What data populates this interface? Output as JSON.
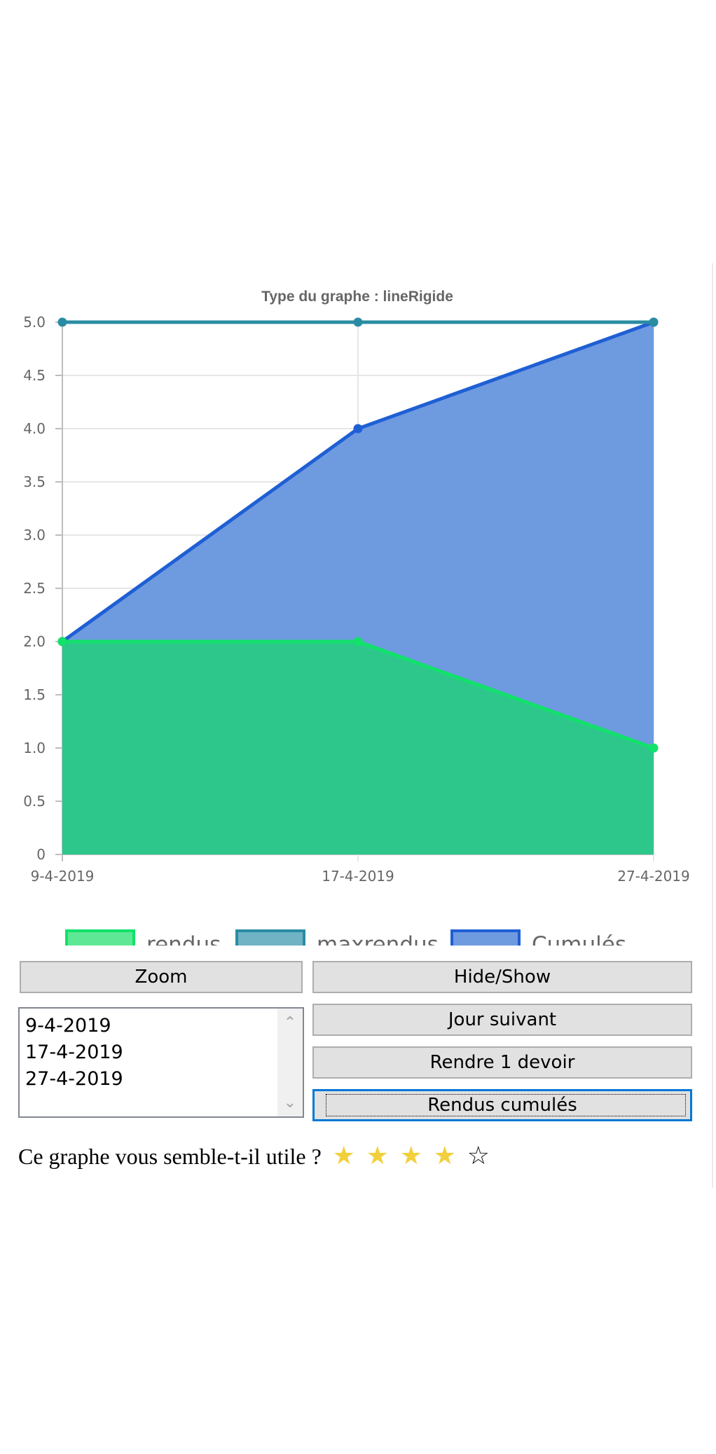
{
  "chart_data": {
    "type": "area",
    "title": "Type du graphe : lineRigide",
    "categories": [
      "9-4-2019",
      "17-4-2019",
      "27-4-2019"
    ],
    "ylim": [
      0,
      5
    ],
    "yticks": [
      "0",
      "0.5",
      "1.0",
      "1.5",
      "2.0",
      "2.5",
      "3.0",
      "3.5",
      "4.0",
      "4.5",
      "5.0"
    ],
    "grid": true,
    "legend_position": "bottom",
    "series": [
      {
        "name": "rendus",
        "values": [
          2,
          2,
          1
        ],
        "fill": "#2dc78c",
        "line": "#11e26a",
        "point": "#11e26a",
        "legend_fill": "#5ee896"
      },
      {
        "name": "maxrendus",
        "values": [
          5,
          5,
          5
        ],
        "fill": "none",
        "line": "#2a8ca3",
        "point": "#2a8ca3",
        "legend_fill": "#6fb3c4"
      },
      {
        "name": "Cumulés",
        "values": [
          2,
          4,
          5
        ],
        "fill": "#6e9ae0",
        "line": "#1e5fd4",
        "point": "#1e5fd4",
        "legend_fill": "#6e9ae0"
      }
    ]
  },
  "controls": {
    "zoom_label": "Zoom",
    "hide_show_label": "Hide/Show",
    "next_day_label": "Jour suivant",
    "submit_label": "Rendre 1 devoir",
    "cumulative_label": "Rendus cumulés",
    "date_list": [
      "9-4-2019",
      "17-4-2019",
      "27-4-2019"
    ],
    "scroll_up_icon": "chevron-up-icon",
    "scroll_down_icon": "chevron-down-icon"
  },
  "rating": {
    "question": "Ce graphe vous semble-t-il utile ?",
    "stars_total": 5,
    "stars_filled": 4,
    "filled_color": "#f2d03d"
  }
}
